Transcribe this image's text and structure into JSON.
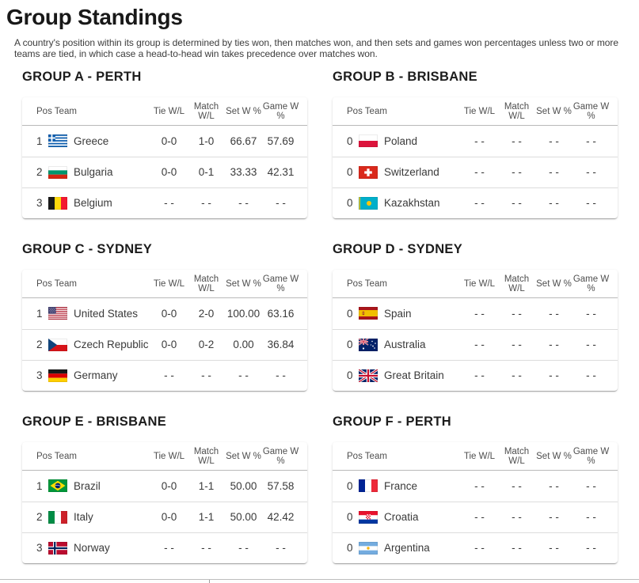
{
  "page": {
    "title": "Group Standings",
    "description": "A country's position within its group is determined by ties won, then matches won, and then sets and games won percentages unless two or more teams are tied, in which case a head-to-head win takes precedence over matches won."
  },
  "table": {
    "col_pos_team": "Pos Team",
    "columns": [
      "Tie W/L",
      "Match\nW/L",
      "Set W %",
      "Game W\n%"
    ]
  },
  "groups": [
    {
      "name": "GROUP A - PERTH",
      "rows": [
        {
          "pos": "1",
          "flag": "gr",
          "team": "Greece",
          "tie": "0-0",
          "match": "1-0",
          "set": "66.67",
          "game": "57.69"
        },
        {
          "pos": "2",
          "flag": "bg",
          "team": "Bulgaria",
          "tie": "0-0",
          "match": "0-1",
          "set": "33.33",
          "game": "42.31"
        },
        {
          "pos": "3",
          "flag": "be",
          "team": "Belgium",
          "tie": "- -",
          "match": "- -",
          "set": "- -",
          "game": "- -"
        }
      ]
    },
    {
      "name": "GROUP B - BRISBANE",
      "rows": [
        {
          "pos": "0",
          "flag": "pl",
          "team": "Poland",
          "tie": "- -",
          "match": "- -",
          "set": "- -",
          "game": "- -"
        },
        {
          "pos": "0",
          "flag": "ch",
          "team": "Switzerland",
          "tie": "- -",
          "match": "- -",
          "set": "- -",
          "game": "- -"
        },
        {
          "pos": "0",
          "flag": "kz",
          "team": "Kazakhstan",
          "tie": "- -",
          "match": "- -",
          "set": "- -",
          "game": "- -"
        }
      ]
    },
    {
      "name": "GROUP C - SYDNEY",
      "rows": [
        {
          "pos": "1",
          "flag": "us",
          "team": "United States",
          "tie": "0-0",
          "match": "2-0",
          "set": "100.00",
          "game": "63.16"
        },
        {
          "pos": "2",
          "flag": "cz",
          "team": "Czech Republic",
          "tie": "0-0",
          "match": "0-2",
          "set": "0.00",
          "game": "36.84"
        },
        {
          "pos": "3",
          "flag": "de",
          "team": "Germany",
          "tie": "- -",
          "match": "- -",
          "set": "- -",
          "game": "- -"
        }
      ]
    },
    {
      "name": "GROUP D - SYDNEY",
      "rows": [
        {
          "pos": "0",
          "flag": "es",
          "team": "Spain",
          "tie": "- -",
          "match": "- -",
          "set": "- -",
          "game": "- -"
        },
        {
          "pos": "0",
          "flag": "au",
          "team": "Australia",
          "tie": "- -",
          "match": "- -",
          "set": "- -",
          "game": "- -"
        },
        {
          "pos": "0",
          "flag": "gb",
          "team": "Great Britain",
          "tie": "- -",
          "match": "- -",
          "set": "- -",
          "game": "- -"
        }
      ]
    },
    {
      "name": "GROUP E - BRISBANE",
      "rows": [
        {
          "pos": "1",
          "flag": "br",
          "team": "Brazil",
          "tie": "0-0",
          "match": "1-1",
          "set": "50.00",
          "game": "57.58"
        },
        {
          "pos": "2",
          "flag": "it",
          "team": "Italy",
          "tie": "0-0",
          "match": "1-1",
          "set": "50.00",
          "game": "42.42"
        },
        {
          "pos": "3",
          "flag": "no",
          "team": "Norway",
          "tie": "- -",
          "match": "- -",
          "set": "- -",
          "game": "- -"
        }
      ]
    },
    {
      "name": "GROUP F - PERTH",
      "rows": [
        {
          "pos": "0",
          "flag": "fr",
          "team": "France",
          "tie": "- -",
          "match": "- -",
          "set": "- -",
          "game": "- -"
        },
        {
          "pos": "0",
          "flag": "hr",
          "team": "Croatia",
          "tie": "- -",
          "match": "- -",
          "set": "- -",
          "game": "- -"
        },
        {
          "pos": "0",
          "flag": "ar",
          "team": "Argentina",
          "tie": "- -",
          "match": "- -",
          "set": "- -",
          "game": "- -"
        }
      ]
    }
  ]
}
